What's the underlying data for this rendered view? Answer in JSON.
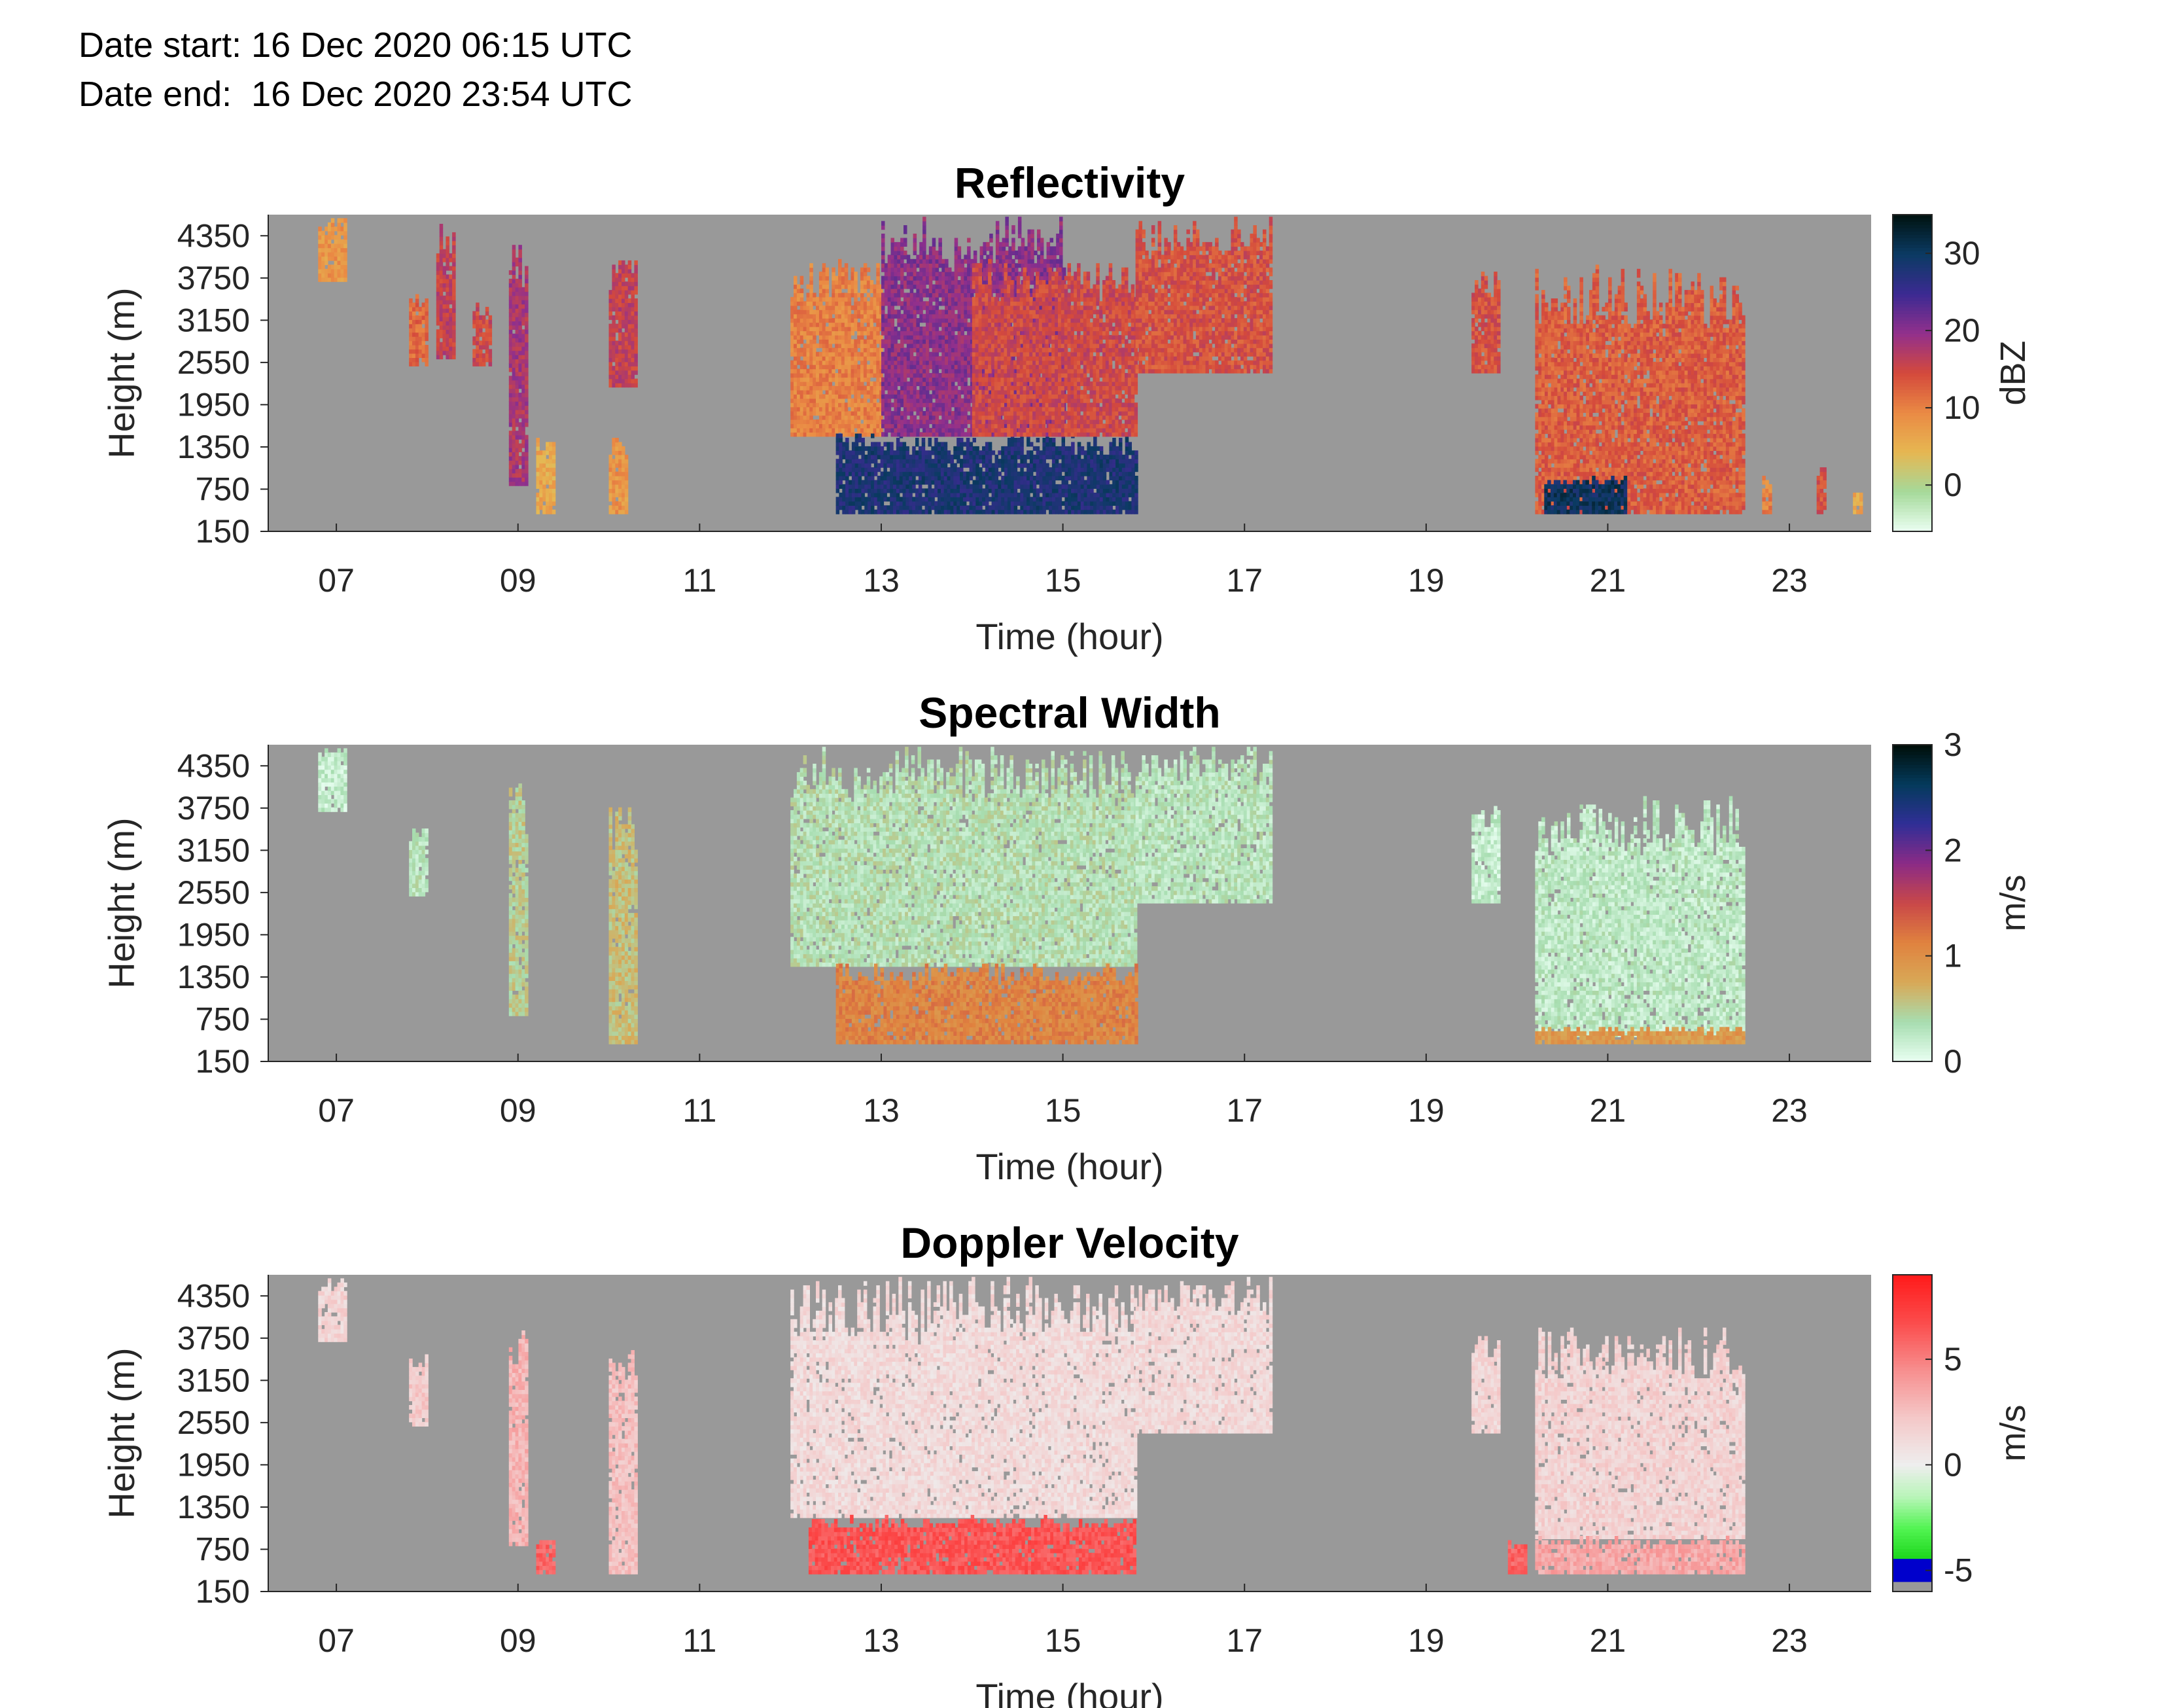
{
  "header": {
    "date_start": "Date start: 16 Dec 2020 06:15 UTC",
    "date_end": "Date end:  16 Dec 2020 23:54 UTC"
  },
  "colors": {
    "background": "#999999",
    "reflectivity_cmap": [
      "#ebfff2",
      "#a5d99a",
      "#e6b752",
      "#ea8a44",
      "#d4493c",
      "#92308c",
      "#3b2a92",
      "#0b3b63",
      "#001210"
    ],
    "spectral_cmap": [
      "#e9fff2",
      "#a7ddb0",
      "#d8a957",
      "#e0823f",
      "#c94848",
      "#8b2b86",
      "#302e96",
      "#043a5c",
      "#000e08"
    ],
    "doppler_cmap_pos": [
      "#eeeeee",
      "#f4c8c8",
      "#f78e8e",
      "#fb4c4c",
      "#ff1a1a"
    ],
    "doppler_cmap_neg": [
      "#eeeeee",
      "#b9f5b9",
      "#52f452",
      "#1ad51a"
    ]
  },
  "chart_data": [
    {
      "type": "heatmap",
      "title": "Reflectivity",
      "xlabel": "Time (hour)",
      "ylabel": "Height (m)",
      "x_ticks": [
        "07",
        "09",
        "11",
        "13",
        "15",
        "17",
        "19",
        "21",
        "23"
      ],
      "y_ticks": [
        "150",
        "750",
        "1350",
        "1950",
        "2550",
        "3150",
        "3750",
        "4350"
      ],
      "xlim": [
        6.25,
        23.9
      ],
      "ylim": [
        150,
        4650
      ],
      "colorbar": {
        "label": "dBZ",
        "ticks": [
          "0",
          "10",
          "20",
          "30"
        ],
        "range": [
          -6,
          35
        ]
      },
      "echoes": [
        {
          "t0": 6.8,
          "t1": 7.1,
          "h0": 3700,
          "h1": 4600,
          "v": 8
        },
        {
          "t0": 7.8,
          "t1": 8.0,
          "h0": 2500,
          "h1": 3500,
          "v": 12
        },
        {
          "t0": 8.1,
          "t1": 8.3,
          "h0": 2600,
          "h1": 4500,
          "v": 16
        },
        {
          "t0": 8.5,
          "t1": 8.7,
          "h0": 2500,
          "h1": 3400,
          "v": 15
        },
        {
          "t0": 8.9,
          "t1": 9.1,
          "h0": 800,
          "h1": 4200,
          "v": 18
        },
        {
          "t0": 9.2,
          "t1": 9.4,
          "h0": 400,
          "h1": 1500,
          "v": 6
        },
        {
          "t0": 10.0,
          "t1": 10.3,
          "h0": 2200,
          "h1": 4000,
          "v": 16
        },
        {
          "t0": 10.0,
          "t1": 10.2,
          "h0": 400,
          "h1": 1500,
          "v": 8
        },
        {
          "t0": 12.0,
          "t1": 13.0,
          "h0": 1500,
          "h1": 4000,
          "v": 10
        },
        {
          "t0": 12.5,
          "t1": 15.8,
          "h0": 400,
          "h1": 1500,
          "v": 28
        },
        {
          "t0": 13.0,
          "t1": 15.0,
          "h0": 1500,
          "h1": 4600,
          "v": 20
        },
        {
          "t0": 14.0,
          "t1": 15.8,
          "h0": 1500,
          "h1": 4000,
          "v": 15
        },
        {
          "t0": 15.8,
          "t1": 17.3,
          "h0": 2400,
          "h1": 4600,
          "v": 14
        },
        {
          "t0": 19.5,
          "t1": 19.8,
          "h0": 2400,
          "h1": 3800,
          "v": 14
        },
        {
          "t0": 20.2,
          "t1": 22.5,
          "h0": 400,
          "h1": 3900,
          "v": 13
        },
        {
          "t0": 20.3,
          "t1": 21.2,
          "h0": 400,
          "h1": 900,
          "v": 30
        },
        {
          "t0": 22.7,
          "t1": 22.8,
          "h0": 400,
          "h1": 900,
          "v": 10
        },
        {
          "t0": 23.3,
          "t1": 23.4,
          "h0": 400,
          "h1": 1100,
          "v": 14
        },
        {
          "t0": 23.7,
          "t1": 23.8,
          "h0": 400,
          "h1": 700,
          "v": 6
        }
      ]
    },
    {
      "type": "heatmap",
      "title": "Spectral Width",
      "xlabel": "Time (hour)",
      "ylabel": "Height (m)",
      "x_ticks": [
        "07",
        "09",
        "11",
        "13",
        "15",
        "17",
        "19",
        "21",
        "23"
      ],
      "y_ticks": [
        "150",
        "750",
        "1350",
        "1950",
        "2550",
        "3150",
        "3750",
        "4350"
      ],
      "xlim": [
        6.25,
        23.9
      ],
      "ylim": [
        150,
        4650
      ],
      "colorbar": {
        "label": "m/s",
        "ticks": [
          "0",
          "1",
          "2",
          "3"
        ],
        "range": [
          0,
          3
        ]
      },
      "echoes": [
        {
          "t0": 6.8,
          "t1": 7.1,
          "h0": 3700,
          "h1": 4600,
          "v": 0.2
        },
        {
          "t0": 7.8,
          "t1": 8.0,
          "h0": 2500,
          "h1": 3500,
          "v": 0.3
        },
        {
          "t0": 8.9,
          "t1": 9.1,
          "h0": 800,
          "h1": 4200,
          "v": 0.5
        },
        {
          "t0": 10.0,
          "t1": 10.3,
          "h0": 400,
          "h1": 4000,
          "v": 0.6
        },
        {
          "t0": 12.0,
          "t1": 15.8,
          "h0": 1500,
          "h1": 4600,
          "v": 0.35
        },
        {
          "t0": 12.5,
          "t1": 15.8,
          "h0": 400,
          "h1": 1500,
          "v": 1.1
        },
        {
          "t0": 15.8,
          "t1": 17.3,
          "h0": 2400,
          "h1": 4600,
          "v": 0.3
        },
        {
          "t0": 19.5,
          "t1": 19.8,
          "h0": 2400,
          "h1": 3800,
          "v": 0.2
        },
        {
          "t0": 20.2,
          "t1": 22.5,
          "h0": 500,
          "h1": 3900,
          "v": 0.25
        },
        {
          "t0": 20.2,
          "t1": 22.5,
          "h0": 400,
          "h1": 600,
          "v": 0.9
        }
      ]
    },
    {
      "type": "heatmap",
      "title": "Doppler Velocity",
      "xlabel": "Time (hour)",
      "ylabel": "Height (m)",
      "x_ticks": [
        "07",
        "09",
        "11",
        "13",
        "15",
        "17",
        "19",
        "21",
        "23"
      ],
      "y_ticks": [
        "150",
        "750",
        "1350",
        "1950",
        "2550",
        "3150",
        "3750",
        "4350"
      ],
      "xlim": [
        6.25,
        23.9
      ],
      "ylim": [
        150,
        4650
      ],
      "colorbar": {
        "label": "m/s",
        "ticks": [
          "-5",
          "0",
          "5"
        ],
        "range": [
          -6,
          9
        ]
      },
      "echoes": [
        {
          "t0": 6.8,
          "t1": 7.1,
          "h0": 3700,
          "h1": 4600,
          "v": 1.5
        },
        {
          "t0": 7.8,
          "t1": 8.0,
          "h0": 2500,
          "h1": 3500,
          "v": 2
        },
        {
          "t0": 8.9,
          "t1": 9.1,
          "h0": 800,
          "h1": 4200,
          "v": 3
        },
        {
          "t0": 9.2,
          "t1": 9.4,
          "h0": 400,
          "h1": 900,
          "v": 6
        },
        {
          "t0": 10.0,
          "t1": 10.3,
          "h0": 400,
          "h1": 4000,
          "v": 2.5
        },
        {
          "t0": 12.0,
          "t1": 15.8,
          "h0": 1200,
          "h1": 4600,
          "v": 1.2
        },
        {
          "t0": 12.2,
          "t1": 15.8,
          "h0": 400,
          "h1": 1200,
          "v": 6.5
        },
        {
          "t0": 15.8,
          "t1": 17.3,
          "h0": 2400,
          "h1": 4600,
          "v": 1.3
        },
        {
          "t0": 19.5,
          "t1": 19.8,
          "h0": 2400,
          "h1": 3800,
          "v": 1.5
        },
        {
          "t0": 19.9,
          "t1": 20.1,
          "h0": 400,
          "h1": 900,
          "v": 6
        },
        {
          "t0": 20.2,
          "t1": 22.5,
          "h0": 900,
          "h1": 3900,
          "v": 1.6
        },
        {
          "t0": 20.2,
          "t1": 22.5,
          "h0": 400,
          "h1": 900,
          "v": 3.5
        }
      ]
    }
  ]
}
